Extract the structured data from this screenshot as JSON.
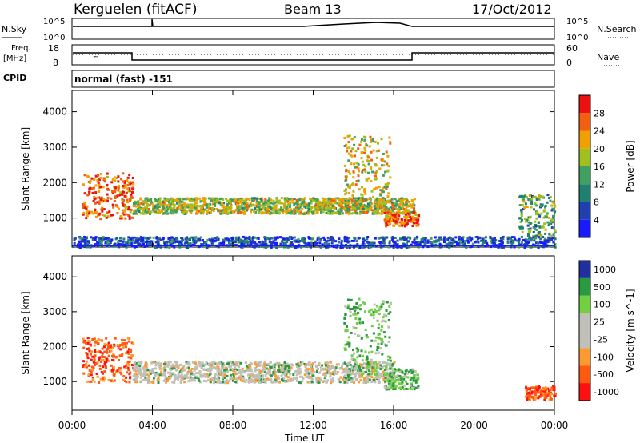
{
  "header": {
    "title": "Kerguelen (fitACF)",
    "beam": "Beam 13",
    "date": "17/Oct/2012"
  },
  "strips": {
    "nsky_label": "N.Sky",
    "nsearch_label": "N.Search",
    "freq_label_line1": "Freq.",
    "freq_label_line2": "[MHz]",
    "nave_label": "Nave",
    "cpid_label": "CPID",
    "cpid_value": "normal (fast) -151",
    "nsky_ticks": [
      "10^5",
      "10^0"
    ],
    "nsearch_ticks": [
      "10^5",
      "10^0"
    ],
    "freq_ticks": [
      "18",
      "8"
    ],
    "nave_ticks": [
      "60",
      "0"
    ]
  },
  "colors": {
    "power_scale": [
      "#1a1aff",
      "#2040b0",
      "#208070",
      "#40a060",
      "#a0c020",
      "#f0a000",
      "#f06010",
      "#ee1010"
    ],
    "velocity_scale": [
      "#ff1010",
      "#ff5a10",
      "#ff9a30",
      "#c0c0b8",
      "#c0c0b8",
      "#70d040",
      "#2a9a40",
      "#2030a0"
    ]
  },
  "chart_data": [
    {
      "type": "heatmap",
      "title": "Power",
      "xlabel": "Time UT",
      "ylabel": "Slant Range [km]",
      "x_ticks": [
        "00:00",
        "04:00",
        "08:00",
        "12:00",
        "16:00",
        "20:00",
        "00:00"
      ],
      "y_ticks": [
        "1000",
        "2000",
        "3000",
        "4000"
      ],
      "ylim": [
        180,
        4600
      ],
      "colorbar_label": "Power [dB]",
      "colorbar_ticks": [
        "4",
        "8",
        "12",
        "16",
        "20",
        "24",
        "28"
      ],
      "colorbar_range": [
        0,
        32
      ],
      "features": [
        {
          "name": "early-patch",
          "t": [
            0.5,
            3.0
          ],
          "range": [
            1000,
            2300
          ],
          "level": 26
        },
        {
          "name": "main-band",
          "t": [
            3.0,
            17.0
          ],
          "range_start": [
            1400,
            1100
          ],
          "range_end": [
            1400,
            900
          ],
          "level": 18
        },
        {
          "name": "plume",
          "t": [
            13.5,
            15.8
          ],
          "range": [
            1200,
            3400
          ],
          "level": 20
        },
        {
          "name": "late-echo",
          "t": [
            15.5,
            17.2
          ],
          "range": [
            800,
            1200
          ],
          "level": 26
        },
        {
          "name": "evening-echo",
          "t": [
            22.2,
            24.0
          ],
          "range": [
            500,
            1700
          ],
          "level": 14
        },
        {
          "name": "ground-scatter-floor",
          "t": [
            0,
            24
          ],
          "range": [
            200,
            500
          ],
          "level": 6
        }
      ]
    },
    {
      "type": "heatmap",
      "title": "Velocity",
      "xlabel": "Time UT",
      "ylabel": "Slant Range [km]",
      "x_ticks": [
        "00:00",
        "04:00",
        "08:00",
        "12:00",
        "16:00",
        "20:00",
        "00:00"
      ],
      "y_ticks": [
        "1000",
        "2000",
        "3000",
        "4000"
      ],
      "ylim": [
        180,
        4600
      ],
      "colorbar_label": "Velocity [m s^-1]",
      "colorbar_ticks": [
        "1000",
        "500",
        "100",
        "25",
        "-25",
        "-100",
        "-500",
        "-1000"
      ],
      "features": [
        {
          "name": "early-patch",
          "t": [
            0.5,
            3.0
          ],
          "range": [
            1000,
            2300
          ],
          "velocity": -500
        },
        {
          "name": "main-band",
          "t": [
            3.0,
            16.0
          ],
          "range": [
            1000,
            1600
          ],
          "velocity": 0
        },
        {
          "name": "plume",
          "t": [
            13.5,
            15.8
          ],
          "range": [
            1200,
            3400
          ],
          "velocity": 100
        },
        {
          "name": "late-echo",
          "t": [
            15.5,
            17.2
          ],
          "range": [
            800,
            1400
          ],
          "velocity": 100
        },
        {
          "name": "evening-echo",
          "t": [
            22.5,
            24.0
          ],
          "range": [
            500,
            900
          ],
          "velocity": -500
        }
      ]
    }
  ]
}
